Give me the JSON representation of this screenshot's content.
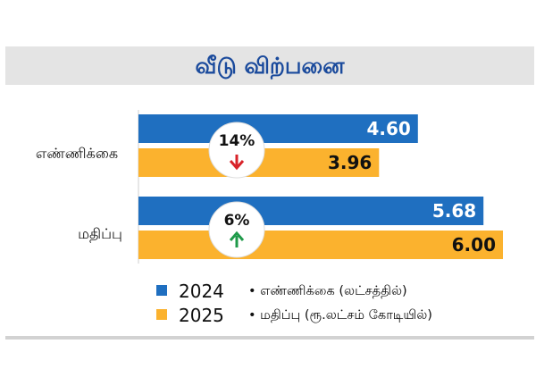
{
  "chart_data": {
    "type": "bar",
    "orientation": "horizontal",
    "title": "வீடு விற்பனை",
    "categories": [
      "எண்ணிக்கை",
      "மதிப்பு"
    ],
    "series": [
      {
        "name": "2024",
        "values": [
          4.6,
          5.68
        ],
        "labels": [
          "4.60",
          "5.68"
        ],
        "color": "#1f6fc0"
      },
      {
        "name": "2025",
        "values": [
          3.96,
          6.0
        ],
        "labels": [
          "3.96",
          "6.00"
        ],
        "color": "#fbb22e"
      }
    ],
    "annotations": [
      {
        "category": "எண்ணிக்கை",
        "text": "14%",
        "direction": "down",
        "arrow_color": "#d8232a"
      },
      {
        "category": "மதிப்பு",
        "text": "6%",
        "direction": "up",
        "arrow_color": "#1f9a4a"
      }
    ],
    "legend_notes": [
      "• எண்ணிக்கை (லட்சத்தில்)",
      "• மதிப்பு (ரூ.லட்சம் கோடியில்)"
    ],
    "xlim": [
      0,
      6.0
    ]
  }
}
